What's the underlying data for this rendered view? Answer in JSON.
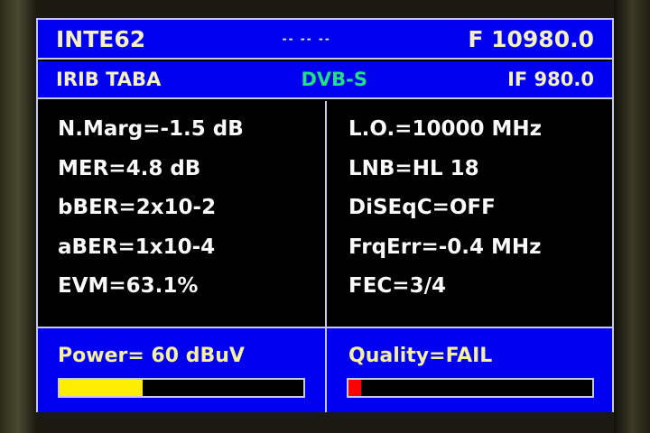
{
  "header": {
    "satellite": "INTE62",
    "indicator": "-- -- --",
    "frequency": "F 10980.0"
  },
  "subheader": {
    "channel": "IRIB TABA",
    "standard": "DVB-S",
    "if_freq": "IF 980.0"
  },
  "left_params": [
    "N.Marg=-1.5 dB",
    "MER=4.8 dB",
    "bBER=2x10-2",
    "aBER=1x10-4",
    "EVM=63.1%"
  ],
  "right_params": [
    "L.O.=10000 MHz",
    "LNB=HL 18",
    "DiSEqC=OFF",
    "FrqErr=-0.4 MHz",
    "FEC=3/4"
  ],
  "power": {
    "label": "Power=  60 dBuV",
    "level_percent": 34,
    "color": "#ffee00"
  },
  "quality": {
    "label": "Quality=FAIL",
    "level_percent": 5,
    "color": "#ff0000"
  }
}
